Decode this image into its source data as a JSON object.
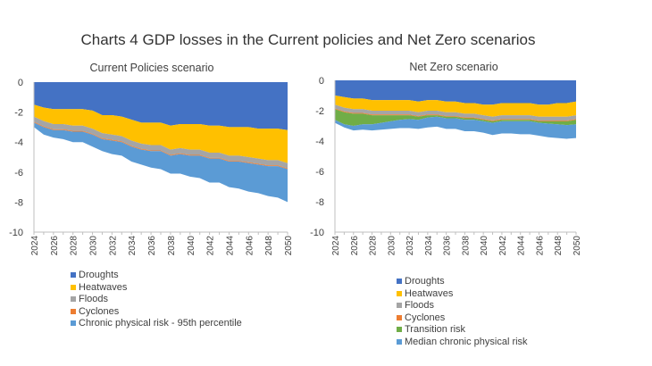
{
  "figure_title": "Charts 4 GDP losses in the Current policies and Net Zero scenarios",
  "chart_data": [
    {
      "type": "area",
      "stacking": "stacked, cumulative negative",
      "title": "Current Policies scenario",
      "xlabel": "",
      "ylabel": "",
      "ylim": [
        -10,
        0
      ],
      "yticks": [
        0,
        -2,
        -4,
        -6,
        -8,
        -10
      ],
      "grid": false,
      "legend_position": "bottom",
      "x": [
        2024,
        2025,
        2026,
        2027,
        2028,
        2029,
        2030,
        2031,
        2032,
        2033,
        2034,
        2035,
        2036,
        2037,
        2038,
        2039,
        2040,
        2041,
        2042,
        2043,
        2044,
        2045,
        2046,
        2047,
        2048,
        2049,
        2050
      ],
      "xtick_labels": [
        "2024",
        "2026",
        "2028",
        "2030",
        "2032",
        "2034",
        "2036",
        "2038",
        "2040",
        "2042",
        "2044",
        "2046",
        "2048",
        "2050"
      ],
      "series": [
        {
          "name": "Droughts",
          "color": "#4472C4",
          "values": [
            -1.5,
            -1.7,
            -1.8,
            -1.8,
            -1.8,
            -1.8,
            -1.9,
            -2.2,
            -2.2,
            -2.3,
            -2.5,
            -2.7,
            -2.7,
            -2.7,
            -2.9,
            -2.8,
            -2.8,
            -2.8,
            -2.9,
            -2.9,
            -3.0,
            -3.0,
            -3.0,
            -3.1,
            -3.1,
            -3.1,
            -3.2
          ]
        },
        {
          "name": "Heatwaves",
          "color": "#FFC000",
          "values": [
            -0.8,
            -0.9,
            -1.0,
            -1.0,
            -1.1,
            -1.1,
            -1.2,
            -1.2,
            -1.3,
            -1.3,
            -1.4,
            -1.4,
            -1.5,
            -1.5,
            -1.6,
            -1.6,
            -1.7,
            -1.7,
            -1.8,
            -1.8,
            -1.9,
            -1.9,
            -2.0,
            -2.0,
            -2.1,
            -2.1,
            -2.2
          ]
        },
        {
          "name": "Floods",
          "color": "#A5A5A5",
          "values": [
            -0.35,
            -0.35,
            -0.35,
            -0.35,
            -0.35,
            -0.35,
            -0.35,
            -0.35,
            -0.35,
            -0.35,
            -0.35,
            -0.35,
            -0.35,
            -0.35,
            -0.35,
            -0.35,
            -0.35,
            -0.35,
            -0.35,
            -0.35,
            -0.35,
            -0.35,
            -0.35,
            -0.35,
            -0.35,
            -0.35,
            -0.35
          ]
        },
        {
          "name": "Cyclones",
          "color": "#ED7D31",
          "values": [
            -0.05,
            -0.05,
            -0.05,
            -0.05,
            -0.05,
            -0.05,
            -0.05,
            -0.05,
            -0.05,
            -0.05,
            -0.05,
            -0.05,
            -0.05,
            -0.05,
            -0.05,
            -0.05,
            -0.05,
            -0.05,
            -0.05,
            -0.05,
            -0.05,
            -0.05,
            -0.05,
            -0.05,
            -0.05,
            -0.05,
            -0.05
          ]
        },
        {
          "name": "Chronic physical risk - 95th percentile",
          "color": "#5B9BD5",
          "values": [
            -0.3,
            -0.5,
            -0.5,
            -0.6,
            -0.7,
            -0.7,
            -0.8,
            -0.8,
            -0.9,
            -0.9,
            -1.0,
            -1.0,
            -1.1,
            -1.2,
            -1.2,
            -1.3,
            -1.4,
            -1.5,
            -1.6,
            -1.6,
            -1.7,
            -1.8,
            -1.9,
            -1.9,
            -2.0,
            -2.1,
            -2.2
          ]
        }
      ]
    },
    {
      "type": "area",
      "stacking": "stacked, cumulative negative",
      "title": "Net Zero scenario",
      "xlabel": "",
      "ylabel": "",
      "ylim": [
        -10,
        0
      ],
      "yticks": [
        0,
        -2,
        -4,
        -6,
        -8,
        -10
      ],
      "grid": false,
      "legend_position": "bottom",
      "x": [
        2024,
        2025,
        2026,
        2027,
        2028,
        2029,
        2030,
        2031,
        2032,
        2033,
        2034,
        2035,
        2036,
        2037,
        2038,
        2039,
        2040,
        2041,
        2042,
        2043,
        2044,
        2045,
        2046,
        2047,
        2048,
        2049,
        2050
      ],
      "xtick_labels": [
        "2024",
        "2026",
        "2028",
        "2030",
        "2032",
        "2034",
        "2036",
        "2038",
        "2040",
        "2042",
        "2044",
        "2046",
        "2048",
        "2050"
      ],
      "series": [
        {
          "name": "Droughts",
          "color": "#4472C4",
          "values": [
            -1.0,
            -1.1,
            -1.2,
            -1.2,
            -1.3,
            -1.3,
            -1.3,
            -1.3,
            -1.3,
            -1.4,
            -1.3,
            -1.3,
            -1.4,
            -1.4,
            -1.5,
            -1.5,
            -1.6,
            -1.6,
            -1.5,
            -1.5,
            -1.5,
            -1.5,
            -1.6,
            -1.6,
            -1.5,
            -1.5,
            -1.4
          ]
        },
        {
          "name": "Heatwaves",
          "color": "#FFC000",
          "values": [
            -0.6,
            -0.7,
            -0.7,
            -0.7,
            -0.7,
            -0.7,
            -0.7,
            -0.7,
            -0.7,
            -0.7,
            -0.7,
            -0.7,
            -0.7,
            -0.7,
            -0.7,
            -0.7,
            -0.7,
            -0.8,
            -0.8,
            -0.8,
            -0.8,
            -0.8,
            -0.8,
            -0.8,
            -0.9,
            -0.9,
            -0.9
          ]
        },
        {
          "name": "Floods",
          "color": "#A5A5A5",
          "values": [
            -0.25,
            -0.25,
            -0.25,
            -0.25,
            -0.25,
            -0.25,
            -0.25,
            -0.25,
            -0.25,
            -0.25,
            -0.25,
            -0.25,
            -0.25,
            -0.25,
            -0.25,
            -0.25,
            -0.25,
            -0.25,
            -0.25,
            -0.25,
            -0.25,
            -0.25,
            -0.25,
            -0.25,
            -0.25,
            -0.25,
            -0.25
          ]
        },
        {
          "name": "Cyclones",
          "color": "#ED7D31",
          "values": [
            -0.05,
            -0.05,
            -0.05,
            -0.05,
            -0.05,
            -0.05,
            -0.05,
            -0.05,
            -0.05,
            -0.05,
            -0.05,
            -0.05,
            -0.05,
            -0.05,
            -0.05,
            -0.05,
            -0.05,
            -0.05,
            -0.05,
            -0.05,
            -0.05,
            -0.05,
            -0.05,
            -0.05,
            -0.05,
            -0.05,
            -0.05
          ]
        },
        {
          "name": "Transition risk",
          "color": "#70AD47",
          "values": [
            -0.7,
            -0.8,
            -0.8,
            -0.7,
            -0.6,
            -0.5,
            -0.4,
            -0.3,
            -0.25,
            -0.2,
            -0.15,
            -0.1,
            -0.1,
            -0.1,
            -0.1,
            -0.1,
            -0.1,
            -0.1,
            -0.1,
            -0.1,
            -0.1,
            -0.1,
            -0.1,
            -0.15,
            -0.2,
            -0.25,
            -0.3
          ]
        },
        {
          "name": "Median chronic physical risk",
          "color": "#5B9BD5",
          "values": [
            -0.2,
            -0.2,
            -0.3,
            -0.35,
            -0.4,
            -0.45,
            -0.5,
            -0.55,
            -0.6,
            -0.6,
            -0.65,
            -0.65,
            -0.7,
            -0.7,
            -0.75,
            -0.75,
            -0.75,
            -0.8,
            -0.8,
            -0.8,
            -0.85,
            -0.85,
            -0.85,
            -0.9,
            -0.9,
            -0.9,
            -0.9
          ]
        }
      ]
    }
  ]
}
